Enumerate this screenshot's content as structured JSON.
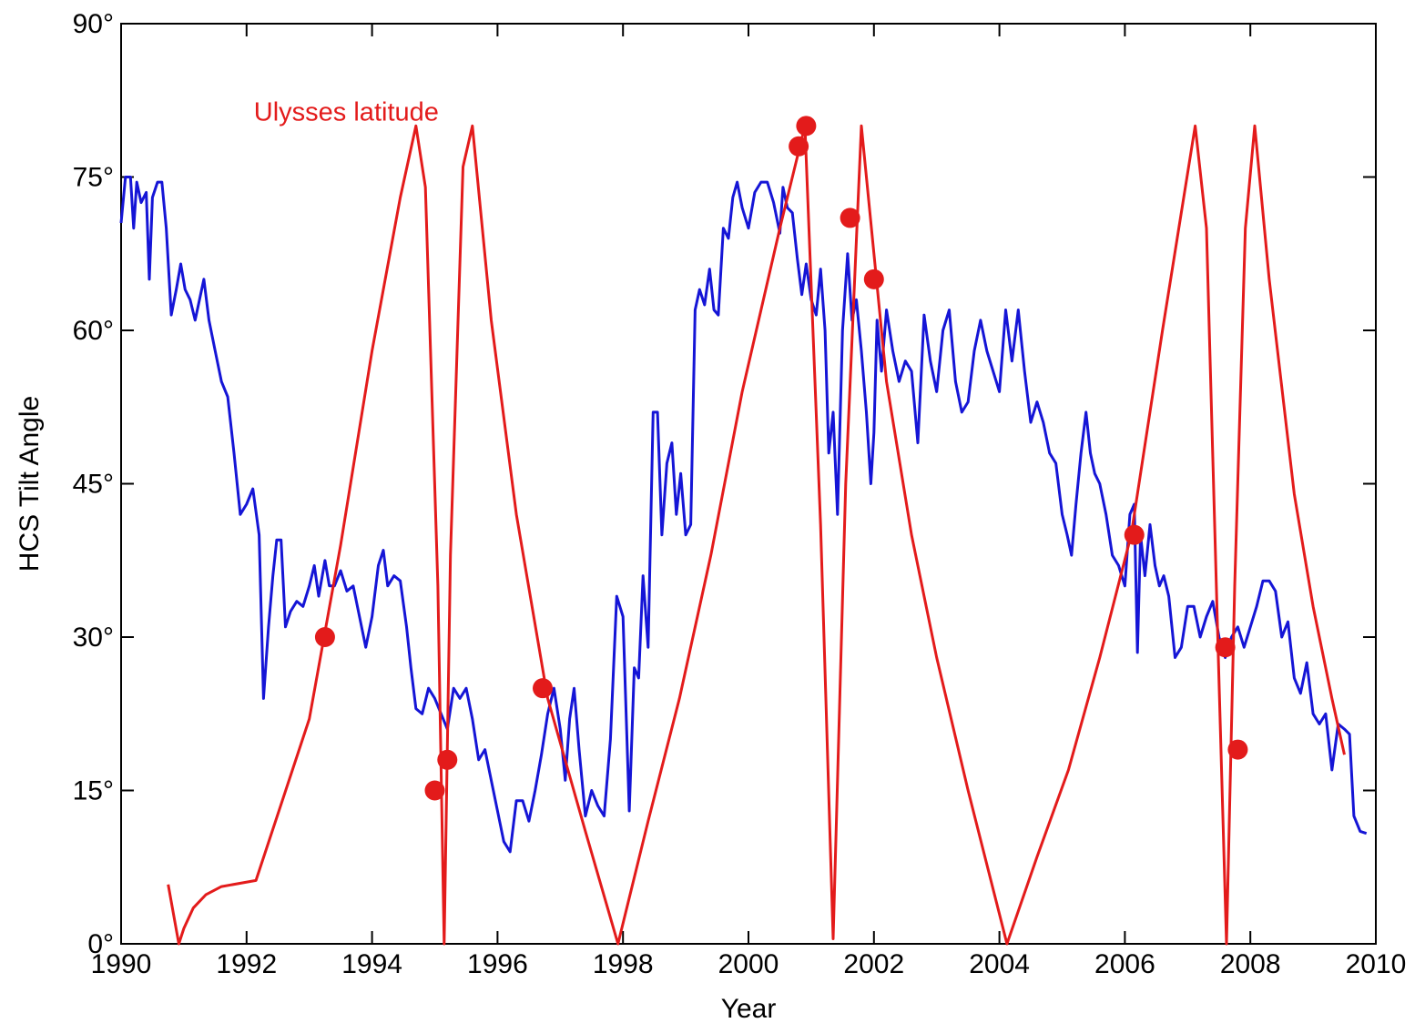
{
  "chart_data": {
    "type": "line",
    "xlabel": "Year",
    "ylabel": "HCS Tilt Angle",
    "xlim": [
      1990,
      2010
    ],
    "ylim": [
      0,
      90
    ],
    "xticks": [
      1990,
      1992,
      1994,
      1996,
      1998,
      2000,
      2002,
      2004,
      2006,
      2008,
      2010
    ],
    "xtick_labels": [
      "1990",
      "1992",
      "1994",
      "1996",
      "1998",
      "2000",
      "2002",
      "2004",
      "2006",
      "2008",
      "2010"
    ],
    "yticks": [
      0,
      15,
      30,
      45,
      60,
      75,
      90
    ],
    "ytick_labels": [
      "0°",
      "15°",
      "30°",
      "45°",
      "60°",
      "75°",
      "90°"
    ],
    "grid": false,
    "annotations": [
      {
        "text": "Ulysses latitude",
        "x": 1992.0,
        "y": 81.5,
        "color": "#e31b1b"
      }
    ],
    "series": [
      {
        "color": "#1515d6",
        "points": [
          [
            1990.0,
            70.5
          ],
          [
            1990.07,
            75
          ],
          [
            1990.15,
            75
          ],
          [
            1990.2,
            70
          ],
          [
            1990.25,
            74.5
          ],
          [
            1990.32,
            72.5
          ],
          [
            1990.4,
            73.5
          ],
          [
            1990.45,
            65
          ],
          [
            1990.5,
            73
          ],
          [
            1990.58,
            74.5
          ],
          [
            1990.65,
            74.5
          ],
          [
            1990.72,
            70
          ],
          [
            1990.8,
            61.5
          ],
          [
            1990.88,
            64
          ],
          [
            1990.95,
            66.5
          ],
          [
            1991.02,
            64
          ],
          [
            1991.1,
            63
          ],
          [
            1991.18,
            61
          ],
          [
            1991.25,
            63
          ],
          [
            1991.32,
            65
          ],
          [
            1991.4,
            61
          ],
          [
            1991.5,
            58
          ],
          [
            1991.6,
            55
          ],
          [
            1991.7,
            53.5
          ],
          [
            1991.8,
            48
          ],
          [
            1991.9,
            42
          ],
          [
            1992.0,
            43
          ],
          [
            1992.1,
            44.5
          ],
          [
            1992.2,
            40
          ],
          [
            1992.27,
            24
          ],
          [
            1992.35,
            31
          ],
          [
            1992.42,
            36
          ],
          [
            1992.48,
            39.5
          ],
          [
            1992.55,
            39.5
          ],
          [
            1992.62,
            31
          ],
          [
            1992.7,
            32.5
          ],
          [
            1992.8,
            33.5
          ],
          [
            1992.9,
            33
          ],
          [
            1993.0,
            35
          ],
          [
            1993.08,
            37
          ],
          [
            1993.15,
            34
          ],
          [
            1993.25,
            37.5
          ],
          [
            1993.32,
            35
          ],
          [
            1993.4,
            35
          ],
          [
            1993.5,
            36.5
          ],
          [
            1993.6,
            34.5
          ],
          [
            1993.7,
            35
          ],
          [
            1993.8,
            32
          ],
          [
            1993.9,
            29
          ],
          [
            1994.0,
            32
          ],
          [
            1994.1,
            37
          ],
          [
            1994.18,
            38.5
          ],
          [
            1994.25,
            35
          ],
          [
            1994.35,
            36
          ],
          [
            1994.45,
            35.5
          ],
          [
            1994.55,
            31
          ],
          [
            1994.62,
            27
          ],
          [
            1994.7,
            23
          ],
          [
            1994.8,
            22.5
          ],
          [
            1994.9,
            25
          ],
          [
            1995.0,
            24
          ],
          [
            1995.1,
            22.5
          ],
          [
            1995.2,
            21
          ],
          [
            1995.3,
            25
          ],
          [
            1995.4,
            24
          ],
          [
            1995.5,
            25
          ],
          [
            1995.6,
            22
          ],
          [
            1995.7,
            18
          ],
          [
            1995.8,
            19
          ],
          [
            1995.9,
            16
          ],
          [
            1996.0,
            13
          ],
          [
            1996.1,
            10
          ],
          [
            1996.2,
            9
          ],
          [
            1996.3,
            14
          ],
          [
            1996.4,
            14
          ],
          [
            1996.5,
            12
          ],
          [
            1996.6,
            15
          ],
          [
            1996.7,
            18.5
          ],
          [
            1996.8,
            22.5
          ],
          [
            1996.9,
            25
          ],
          [
            1997.0,
            21
          ],
          [
            1997.08,
            16
          ],
          [
            1997.15,
            22
          ],
          [
            1997.22,
            25
          ],
          [
            1997.3,
            19
          ],
          [
            1997.4,
            12.5
          ],
          [
            1997.5,
            15
          ],
          [
            1997.6,
            13.5
          ],
          [
            1997.7,
            12.5
          ],
          [
            1997.8,
            20
          ],
          [
            1997.9,
            34
          ],
          [
            1998.0,
            32
          ],
          [
            1998.1,
            13
          ],
          [
            1998.18,
            27
          ],
          [
            1998.25,
            26
          ],
          [
            1998.32,
            36
          ],
          [
            1998.4,
            29
          ],
          [
            1998.48,
            52
          ],
          [
            1998.55,
            52
          ],
          [
            1998.62,
            40
          ],
          [
            1998.7,
            47
          ],
          [
            1998.78,
            49
          ],
          [
            1998.85,
            42
          ],
          [
            1998.92,
            46
          ],
          [
            1999.0,
            40
          ],
          [
            1999.08,
            41
          ],
          [
            1999.15,
            62
          ],
          [
            1999.22,
            64
          ],
          [
            1999.3,
            62.5
          ],
          [
            1999.38,
            66
          ],
          [
            1999.45,
            62
          ],
          [
            1999.52,
            61.5
          ],
          [
            1999.6,
            70
          ],
          [
            1999.68,
            69
          ],
          [
            1999.75,
            73
          ],
          [
            1999.82,
            74.5
          ],
          [
            1999.9,
            72
          ],
          [
            2000.0,
            70
          ],
          [
            2000.1,
            73.5
          ],
          [
            2000.2,
            74.5
          ],
          [
            2000.3,
            74.5
          ],
          [
            2000.4,
            72.5
          ],
          [
            2000.5,
            69.5
          ],
          [
            2000.55,
            74
          ],
          [
            2000.62,
            72
          ],
          [
            2000.7,
            71.5
          ],
          [
            2000.78,
            67
          ],
          [
            2000.85,
            63.5
          ],
          [
            2000.92,
            66.5
          ],
          [
            2001.0,
            63
          ],
          [
            2001.08,
            61.5
          ],
          [
            2001.15,
            66
          ],
          [
            2001.22,
            60
          ],
          [
            2001.28,
            48
          ],
          [
            2001.35,
            52
          ],
          [
            2001.42,
            42
          ],
          [
            2001.5,
            60
          ],
          [
            2001.58,
            67.5
          ],
          [
            2001.65,
            61
          ],
          [
            2001.72,
            63
          ],
          [
            2001.8,
            58
          ],
          [
            2001.88,
            52
          ],
          [
            2001.95,
            45
          ],
          [
            2002.0,
            50
          ],
          [
            2002.05,
            61
          ],
          [
            2002.12,
            56
          ],
          [
            2002.2,
            62
          ],
          [
            2002.3,
            58
          ],
          [
            2002.4,
            55
          ],
          [
            2002.5,
            57
          ],
          [
            2002.6,
            56
          ],
          [
            2002.7,
            49
          ],
          [
            2002.8,
            61.5
          ],
          [
            2002.9,
            57
          ],
          [
            2003.0,
            54
          ],
          [
            2003.1,
            60
          ],
          [
            2003.2,
            62
          ],
          [
            2003.3,
            55
          ],
          [
            2003.4,
            52
          ],
          [
            2003.5,
            53
          ],
          [
            2003.6,
            58
          ],
          [
            2003.7,
            61
          ],
          [
            2003.8,
            58
          ],
          [
            2003.9,
            56
          ],
          [
            2004.0,
            54
          ],
          [
            2004.1,
            62
          ],
          [
            2004.2,
            57
          ],
          [
            2004.3,
            62
          ],
          [
            2004.4,
            56
          ],
          [
            2004.5,
            51
          ],
          [
            2004.6,
            53
          ],
          [
            2004.7,
            51
          ],
          [
            2004.8,
            48
          ],
          [
            2004.9,
            47
          ],
          [
            2005.0,
            42
          ],
          [
            2005.08,
            40
          ],
          [
            2005.15,
            38
          ],
          [
            2005.22,
            43
          ],
          [
            2005.3,
            48
          ],
          [
            2005.38,
            52
          ],
          [
            2005.45,
            48
          ],
          [
            2005.52,
            46
          ],
          [
            2005.6,
            45
          ],
          [
            2005.7,
            42
          ],
          [
            2005.8,
            38
          ],
          [
            2005.9,
            37
          ],
          [
            2006.0,
            35
          ],
          [
            2006.08,
            42
          ],
          [
            2006.15,
            43
          ],
          [
            2006.2,
            28.5
          ],
          [
            2006.25,
            40
          ],
          [
            2006.32,
            36
          ],
          [
            2006.4,
            41
          ],
          [
            2006.48,
            37
          ],
          [
            2006.55,
            35
          ],
          [
            2006.62,
            36
          ],
          [
            2006.7,
            34
          ],
          [
            2006.8,
            28
          ],
          [
            2006.9,
            29
          ],
          [
            2007.0,
            33
          ],
          [
            2007.1,
            33
          ],
          [
            2007.2,
            30
          ],
          [
            2007.3,
            32
          ],
          [
            2007.4,
            33.5
          ],
          [
            2007.5,
            30
          ],
          [
            2007.6,
            28
          ],
          [
            2007.7,
            30
          ],
          [
            2007.8,
            31
          ],
          [
            2007.9,
            29
          ],
          [
            2008.0,
            31
          ],
          [
            2008.1,
            33
          ],
          [
            2008.2,
            35.5
          ],
          [
            2008.3,
            35.5
          ],
          [
            2008.4,
            34.5
          ],
          [
            2008.5,
            30
          ],
          [
            2008.6,
            31.5
          ],
          [
            2008.7,
            26
          ],
          [
            2008.8,
            24.5
          ],
          [
            2008.9,
            27.5
          ],
          [
            2009.0,
            22.5
          ],
          [
            2009.1,
            21.5
          ],
          [
            2009.2,
            22.5
          ],
          [
            2009.3,
            17
          ],
          [
            2009.4,
            21.5
          ],
          [
            2009.5,
            21
          ],
          [
            2009.58,
            20.5
          ],
          [
            2009.65,
            12.5
          ],
          [
            2009.75,
            11
          ],
          [
            2009.85,
            10.8
          ]
        ]
      },
      {
        "color": "#e31b1b",
        "points": [
          [
            1990.75,
            5.8
          ],
          [
            1990.92,
            0
          ],
          [
            1991.0,
            1.5
          ],
          [
            1991.15,
            3.5
          ],
          [
            1991.35,
            4.8
          ],
          [
            1991.6,
            5.6
          ],
          [
            1992.15,
            6.2
          ],
          [
            1993.0,
            22
          ],
          [
            1993.5,
            39
          ],
          [
            1994.0,
            58
          ],
          [
            1994.45,
            73
          ],
          [
            1994.7,
            80
          ],
          [
            1994.85,
            74
          ],
          [
            1995.05,
            35
          ],
          [
            1995.15,
            0
          ],
          [
            1995.25,
            38
          ],
          [
            1995.45,
            76
          ],
          [
            1995.6,
            80
          ],
          [
            1995.9,
            61
          ],
          [
            1996.3,
            42
          ],
          [
            1996.8,
            24
          ],
          [
            1997.4,
            11
          ],
          [
            1997.92,
            0
          ],
          [
            1998.4,
            12
          ],
          [
            1998.9,
            24
          ],
          [
            1999.4,
            38
          ],
          [
            1999.9,
            54
          ],
          [
            2000.5,
            70
          ],
          [
            2000.9,
            80
          ],
          [
            2001.15,
            41
          ],
          [
            2001.35,
            0.5
          ],
          [
            2001.55,
            45
          ],
          [
            2001.8,
            80
          ],
          [
            2002.2,
            55
          ],
          [
            2002.6,
            40
          ],
          [
            2003.0,
            28
          ],
          [
            2003.5,
            15
          ],
          [
            2004.12,
            0
          ],
          [
            2004.6,
            8.5
          ],
          [
            2005.1,
            17
          ],
          [
            2005.6,
            28
          ],
          [
            2006.1,
            40
          ],
          [
            2006.6,
            60
          ],
          [
            2007.12,
            80
          ],
          [
            2007.3,
            70
          ],
          [
            2007.48,
            30
          ],
          [
            2007.62,
            0
          ],
          [
            2007.75,
            35
          ],
          [
            2007.92,
            70
          ],
          [
            2008.07,
            80
          ],
          [
            2008.3,
            65
          ],
          [
            2008.7,
            44
          ],
          [
            2009.0,
            33
          ],
          [
            2009.3,
            24
          ],
          [
            2009.5,
            18.5
          ]
        ]
      }
    ],
    "markers": {
      "color": "#e31b1b",
      "points": [
        [
          1993.25,
          30
        ],
        [
          1995.0,
          15
        ],
        [
          1995.2,
          18
        ],
        [
          1996.72,
          25
        ],
        [
          2000.8,
          78
        ],
        [
          2000.92,
          80
        ],
        [
          2001.62,
          71
        ],
        [
          2002.0,
          65
        ],
        [
          2006.15,
          40
        ],
        [
          2007.6,
          29
        ],
        [
          2007.8,
          19
        ]
      ]
    }
  }
}
